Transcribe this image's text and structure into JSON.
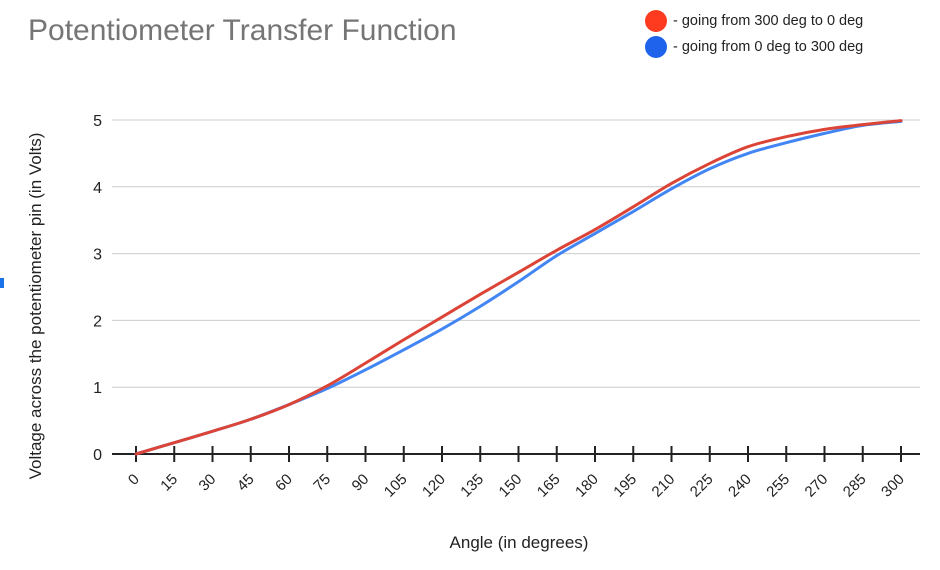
{
  "chart_data": {
    "type": "line",
    "title": "Potentiometer Transfer Function",
    "xlabel": "Angle (in degrees)",
    "ylabel": "Voltage across the potentiometer pin (in Volts)",
    "x": [
      0,
      15,
      30,
      45,
      60,
      75,
      90,
      105,
      120,
      135,
      150,
      165,
      180,
      195,
      210,
      225,
      240,
      255,
      270,
      285,
      300
    ],
    "xlim": [
      0,
      300
    ],
    "ylim": [
      0,
      5
    ],
    "yticks": [
      0,
      1,
      2,
      3,
      4,
      5
    ],
    "grid": true,
    "legend_position": "top-right",
    "series": [
      {
        "name": "- going from 300 deg to 0 deg",
        "color": "#db4437",
        "values": [
          0.0,
          0.17,
          0.34,
          0.52,
          0.74,
          1.02,
          1.36,
          1.71,
          2.05,
          2.39,
          2.72,
          3.05,
          3.36,
          3.7,
          4.05,
          4.35,
          4.6,
          4.75,
          4.86,
          4.93,
          4.99
        ]
      },
      {
        "name": "- going from 0 deg to 300 deg",
        "color": "#4285f4",
        "values": [
          0.0,
          0.17,
          0.34,
          0.52,
          0.74,
          0.98,
          1.26,
          1.56,
          1.87,
          2.21,
          2.58,
          2.97,
          3.3,
          3.63,
          3.97,
          4.27,
          4.5,
          4.66,
          4.8,
          4.92,
          4.98
        ]
      }
    ]
  },
  "legend_dot_colors": [
    "#ff3b1f",
    "#1f63ec"
  ]
}
